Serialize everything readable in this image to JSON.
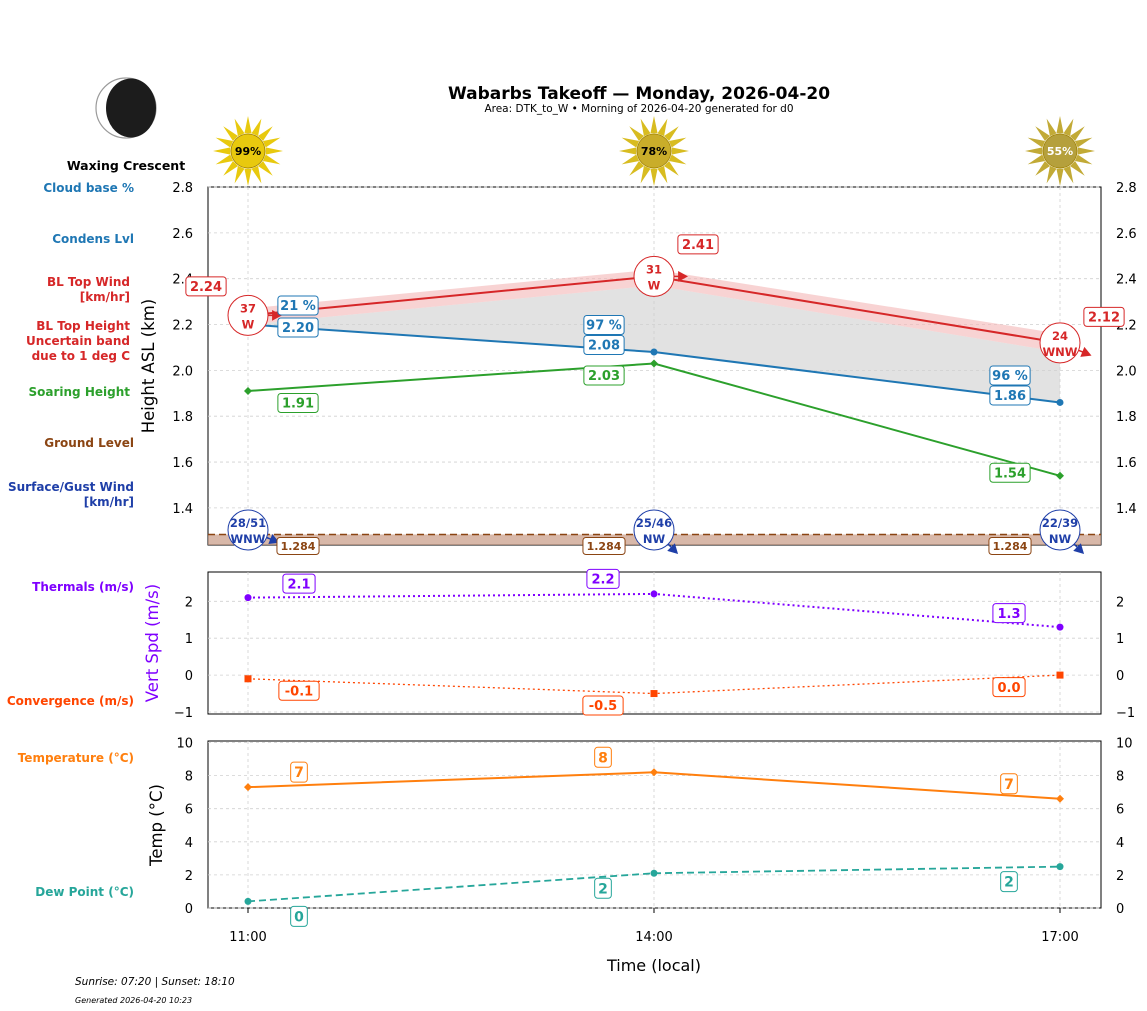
{
  "header": {
    "title": "Wabarbs Takeoff — Monday, 2026-04-20",
    "subtitle": "Area: DTK_to_W • Morning of 2026-04-20 generated for d0"
  },
  "moon": {
    "label": "Waxing Crescent"
  },
  "footer": {
    "sun": "Sunrise: 07:20 | Sunset: 18:10",
    "generated": "Generated 2026-04-20 10:23"
  },
  "row_labels": {
    "cloud_base": "Cloud base %",
    "condens": "Condens Lvl",
    "bl_wind_1": "BL Top Wind",
    "bl_wind_2": "[km/hr]",
    "bl_top_1": "BL Top Height",
    "bl_top_2": "Uncertain band",
    "bl_top_3": "due to 1 deg C",
    "soaring": "Soaring Height",
    "ground": "Ground Level",
    "surface_1": "Surface/Gust Wind",
    "surface_2": "[km/hr]",
    "thermals": "Thermals (m/s)",
    "convergence": "Convergence (m/s)",
    "temperature": "Temperature (°C)",
    "dewpoint": "Dew Point (°C)"
  },
  "colors": {
    "cloud": "#1f77b4",
    "bl_top": "#d62728",
    "soaring": "#2ca02c",
    "ground": "#8b4513",
    "surface_wind": "#1f3fa8",
    "thermals": "#7f00ff",
    "convergence": "#ff4500",
    "temperature": "#ff7f0e",
    "dewpoint": "#26a69a",
    "moon_text": "#444444"
  },
  "chart_data": [
    {
      "type": "line",
      "x": [
        "11:00",
        "14:00",
        "17:00"
      ],
      "ylabel": "Height ASL (km)",
      "ylim": [
        1.23,
        2.8
      ],
      "yticks": [
        "1.4",
        "1.6",
        "1.8",
        "2.0",
        "2.2",
        "2.4",
        "2.6",
        "2.8"
      ],
      "grid": true,
      "sun_percent": [
        "99%",
        "78%",
        "55%"
      ],
      "series": [
        {
          "key": "bl_top",
          "values": [
            2.24,
            2.41,
            2.12
          ],
          "labels": [
            "2.24",
            "2.41",
            "2.12"
          ],
          "band_upper": [
            2.27,
            2.44,
            2.16
          ],
          "band_lower": [
            2.2,
            2.37,
            2.08
          ]
        },
        {
          "key": "condens",
          "values": [
            2.2,
            2.08,
            1.86
          ],
          "labels": [
            "2.20",
            "2.08",
            "1.86"
          ]
        },
        {
          "key": "cloud_pct",
          "values": [
            21,
            97,
            96
          ],
          "labels": [
            "21 %",
            "97 %",
            "96 %"
          ]
        },
        {
          "key": "soaring",
          "values": [
            1.91,
            2.03,
            1.54
          ],
          "labels": [
            "1.91",
            "2.03",
            "1.54"
          ]
        },
        {
          "key": "ground",
          "values": [
            1.284,
            1.284,
            1.284
          ],
          "labels": [
            "1.284",
            "1.284",
            "1.284"
          ]
        }
      ],
      "bl_wind": [
        {
          "speed": "37",
          "dir": "W"
        },
        {
          "speed": "31",
          "dir": "W"
        },
        {
          "speed": "24",
          "dir": "WNW"
        }
      ],
      "surface_wind": [
        {
          "speed": "28/51",
          "dir": "WNW"
        },
        {
          "speed": "25/46",
          "dir": "NW"
        },
        {
          "speed": "22/39",
          "dir": "NW"
        }
      ]
    },
    {
      "type": "line",
      "x": [
        "11:00",
        "14:00",
        "17:00"
      ],
      "ylabel": "Vert Spd (m/s)",
      "ylim": [
        -1.1,
        2.8
      ],
      "yticks": [
        "−1",
        "0",
        "1",
        "2"
      ],
      "grid": true,
      "series": [
        {
          "key": "thermals",
          "values": [
            2.1,
            2.2,
            1.3
          ],
          "labels": [
            "2.1",
            "2.2",
            "1.3"
          ]
        },
        {
          "key": "convergence",
          "values": [
            -0.1,
            -0.5,
            0.0
          ],
          "labels": [
            "-0.1",
            "-0.5",
            "0.0"
          ]
        }
      ]
    },
    {
      "type": "line",
      "x": [
        "11:00",
        "14:00",
        "17:00"
      ],
      "xlabel": "Time (local)",
      "ylabel": "Temp (°C)",
      "ylim": [
        0,
        10
      ],
      "yticks": [
        "0",
        "2",
        "4",
        "6",
        "8",
        "10"
      ],
      "grid": true,
      "series": [
        {
          "key": "temperature",
          "values": [
            7.3,
            8.2,
            6.6
          ],
          "labels": [
            "7",
            "8",
            "7"
          ]
        },
        {
          "key": "dewpoint",
          "values": [
            0.4,
            2.1,
            2.5
          ],
          "labels": [
            "0",
            "2",
            "2"
          ]
        }
      ]
    }
  ]
}
